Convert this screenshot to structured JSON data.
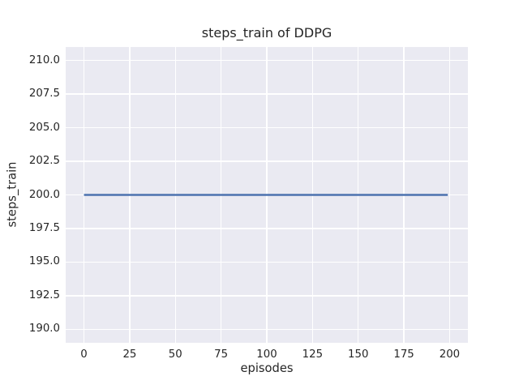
{
  "chart_data": {
    "type": "line",
    "title": "steps_train of DDPG",
    "xlabel": "episodes",
    "ylabel": "steps_train",
    "xlim": [
      -10,
      210
    ],
    "ylim": [
      189,
      211
    ],
    "x_tick_values": [
      0,
      25,
      50,
      75,
      100,
      125,
      150,
      175,
      200
    ],
    "x_tick_labels": [
      "0",
      "25",
      "50",
      "75",
      "100",
      "125",
      "150",
      "175",
      "200"
    ],
    "y_tick_values": [
      190.0,
      192.5,
      195.0,
      197.5,
      200.0,
      202.5,
      205.0,
      207.5,
      210.0
    ],
    "y_tick_labels": [
      "190.0",
      "192.5",
      "195.0",
      "197.5",
      "200.0",
      "202.5",
      "205.0",
      "207.5",
      "210.0"
    ],
    "grid": true,
    "legend": false,
    "series": [
      {
        "name": "steps_train",
        "color": "#4C72B0",
        "points": [
          [
            0,
            200
          ],
          [
            199,
            200
          ]
        ],
        "constant_y_value": 200,
        "x_start": 0,
        "x_end": 199
      }
    ],
    "colors": {
      "figure_background": "#FFFFFF",
      "axes_background": "#EAEAF2",
      "grid": "#FFFFFF",
      "text": "#262626",
      "line": "#4C72B0"
    }
  }
}
